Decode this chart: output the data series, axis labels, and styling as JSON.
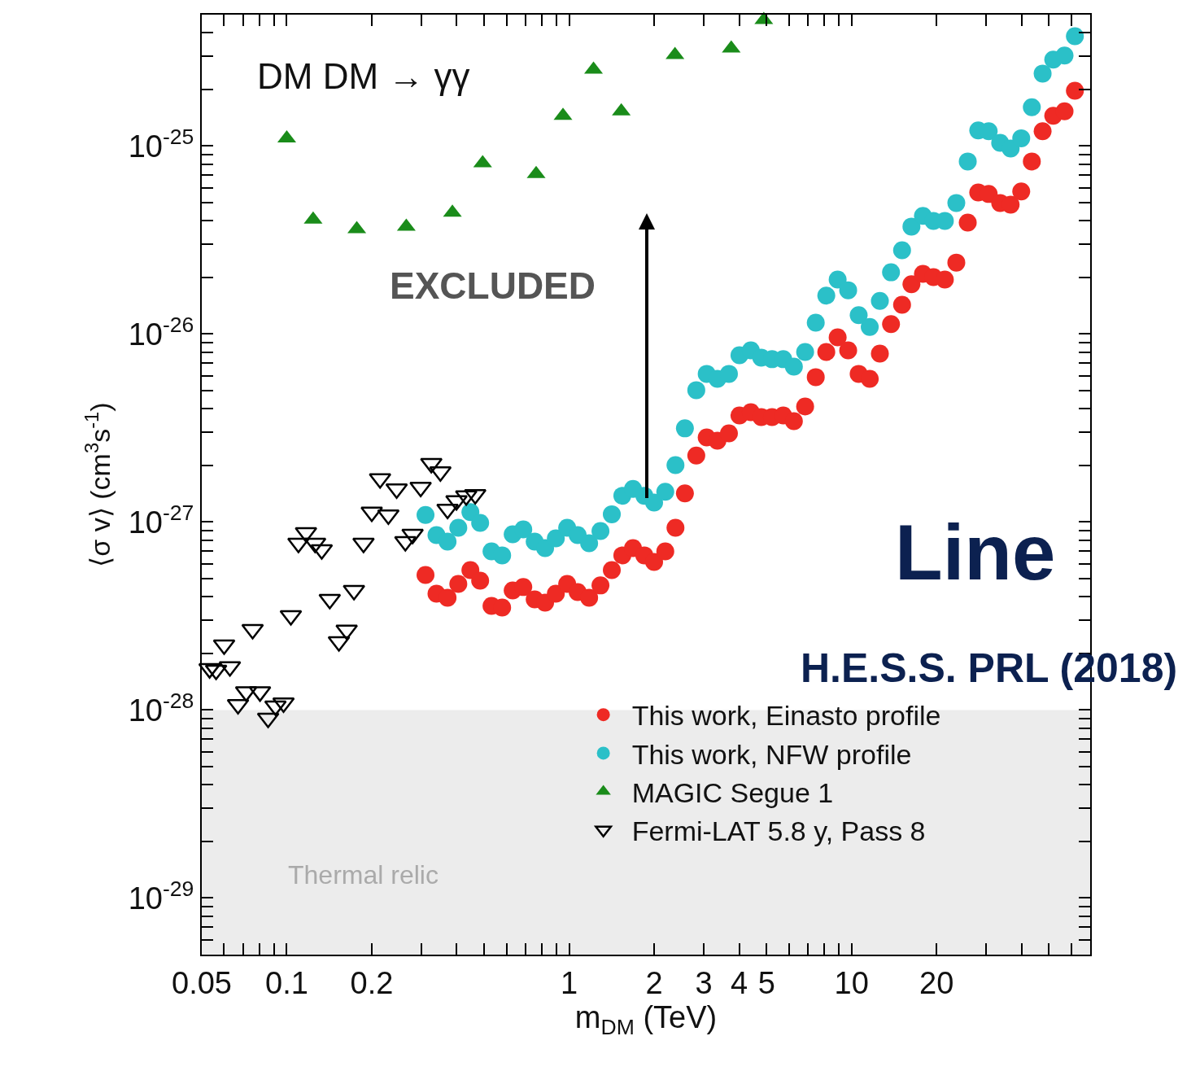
{
  "chart_data": {
    "type": "scatter",
    "xlabel": "m$_{DM}$ (TeV)",
    "ylabel": "⟨σ v⟩ (cm$^{3}$s$^{-1}$)",
    "log": "xy",
    "grid": false,
    "legend": "bottom right",
    "xlim": [
      0.05,
      70
    ],
    "ylim": [
      5e-30,
      5e-25
    ],
    "xticks": [
      0.05,
      {
        "value": 0.06,
        "label": null
      },
      {
        "value": 0.07,
        "label": null
      },
      {
        "value": 0.08,
        "label": null
      },
      {
        "value": 0.09,
        "label": null
      },
      0.1,
      0.2,
      {
        "value": 0.3,
        "label": null
      },
      {
        "value": 0.4,
        "label": null
      },
      {
        "value": 0.5,
        "label": null
      },
      {
        "value": 0.6,
        "label": null
      },
      {
        "value": 0.7,
        "label": null
      },
      {
        "value": 0.8,
        "label": null
      },
      {
        "value": 0.9,
        "label": null
      },
      1,
      2,
      3,
      4,
      5,
      {
        "value": 6,
        "label": null
      },
      {
        "value": 7,
        "label": null
      },
      {
        "value": 8,
        "label": null
      },
      {
        "value": 9,
        "label": null
      },
      10,
      20,
      {
        "value": 30,
        "label": null
      },
      {
        "value": 40,
        "label": null
      },
      {
        "value": 50,
        "label": null
      },
      {
        "value": 60,
        "label": null
      },
      {
        "value": 70,
        "label": null
      }
    ],
    "yticks": [
      {
        "value": 5e-30,
        "label": null
      },
      {
        "value": 6e-30,
        "label": null
      },
      {
        "value": 7e-30,
        "label": null
      },
      {
        "value": 8e-30,
        "label": null
      },
      {
        "value": 9e-30,
        "label": null
      },
      {
        "value": 1e-29,
        "label": "10$^{-29}$"
      },
      {
        "value": 2e-29,
        "label": null
      },
      {
        "value": 3e-29,
        "label": null
      },
      {
        "value": 4e-29,
        "label": null
      },
      {
        "value": 5e-29,
        "label": null
      },
      {
        "value": 6e-29,
        "label": null
      },
      {
        "value": 7e-29,
        "label": null
      },
      {
        "value": 8e-29,
        "label": null
      },
      {
        "value": 9e-29,
        "label": null
      },
      {
        "value": 1e-28,
        "label": "10$^{-28}$"
      },
      {
        "value": 2e-28,
        "label": null
      },
      {
        "value": 3e-28,
        "label": null
      },
      {
        "value": 4e-28,
        "label": null
      },
      {
        "value": 5e-28,
        "label": null
      },
      {
        "value": 6e-28,
        "label": null
      },
      {
        "value": 7e-28,
        "label": null
      },
      {
        "value": 8e-28,
        "label": null
      },
      {
        "value": 9e-28,
        "label": null
      },
      {
        "value": 1e-27,
        "label": "10$^{-27}$"
      },
      {
        "value": 2e-27,
        "label": null
      },
      {
        "value": 3e-27,
        "label": null
      },
      {
        "value": 4e-27,
        "label": null
      },
      {
        "value": 5e-27,
        "label": null
      },
      {
        "value": 6e-27,
        "label": null
      },
      {
        "value": 7e-27,
        "label": null
      },
      {
        "value": 8e-27,
        "label": null
      },
      {
        "value": 9e-27,
        "label": null
      },
      {
        "value": 1e-26,
        "label": "10$^{-26}$"
      },
      {
        "value": 2e-26,
        "label": null
      },
      {
        "value": 3e-26,
        "label": null
      },
      {
        "value": 4e-26,
        "label": null
      },
      {
        "value": 5e-26,
        "label": null
      },
      {
        "value": 6e-26,
        "label": null
      },
      {
        "value": 7e-26,
        "label": null
      },
      {
        "value": 8e-26,
        "label": null
      },
      {
        "value": 9e-26,
        "label": null
      },
      {
        "value": 1e-25,
        "label": "10$^{-25}$"
      },
      {
        "value": 2e-25,
        "label": null
      },
      {
        "value": 3e-25,
        "label": null
      },
      {
        "value": 4e-25,
        "label": null
      },
      {
        "value": 5e-25,
        "label": null
      }
    ],
    "bands": [
      {
        "axis": "y",
        "from": 5e-30,
        "to": 1e-28,
        "label": "Thermal relic",
        "color": "#ececec"
      }
    ],
    "annotations": [
      "DM DM → γγ",
      "EXCLUDED",
      "Line",
      "H.E.S.S. PRL (2018)"
    ],
    "series": [
      {
        "name": "This work, Einasto profile",
        "color": "#ee2a24",
        "marker": "circle",
        "x": [
          0.31,
          0.339,
          0.371,
          0.405,
          0.447,
          0.484,
          0.531,
          0.579,
          0.631,
          0.688,
          0.755,
          0.822,
          0.897,
          0.984,
          1.072,
          1.177,
          1.291,
          1.416,
          1.543,
          1.683,
          1.846,
          1.999,
          2.19,
          2.38,
          2.57,
          2.82,
          3.07,
          3.35,
          3.68,
          4.01,
          4.4,
          4.79,
          5.23,
          5.73,
          6.25,
          6.85,
          7.47,
          8.14,
          8.93,
          9.73,
          10.6,
          11.6,
          12.6,
          13.8,
          15.1,
          16.3,
          17.9,
          19.5,
          21.4,
          23.5,
          25.8,
          28.1,
          30.6,
          33.6,
          36.6,
          39.9,
          43.5,
          47.5,
          51.8,
          56.8,
          61.8
        ],
        "values": [
          5.23e-28,
          4.16e-28,
          3.96e-28,
          4.69e-28,
          5.55e-28,
          4.88e-28,
          3.58e-28,
          3.51e-28,
          4.33e-28,
          4.51e-28,
          3.88e-28,
          3.73e-28,
          4.16e-28,
          4.69e-28,
          4.24e-28,
          3.96e-28,
          4.6e-28,
          5.55e-28,
          6.65e-28,
          7.27e-28,
          6.65e-28,
          6.14e-28,
          6.98e-28,
          9.33e-28,
          1.42e-27,
          2.26e-27,
          2.82e-27,
          2.71e-27,
          2.96e-27,
          3.69e-27,
          3.84e-27,
          3.62e-27,
          3.62e-27,
          3.69e-27,
          3.44e-27,
          4.12e-27,
          5.9e-27,
          8.03e-27,
          9.61e-27,
          8.19e-27,
          6.14e-27,
          5.78e-27,
          7.87e-27,
          1.13e-26,
          1.43e-26,
          1.84e-26,
          2.09e-26,
          2.01e-26,
          1.95e-26,
          2.4e-26,
          3.92e-26,
          5.66e-26,
          5.56e-26,
          4.98e-26,
          4.88e-26,
          5.73e-26,
          8.28e-26,
          1.2e-25,
          1.45e-25,
          1.53e-25,
          1.97e-25
        ]
      },
      {
        "name": "This work, NFW profile",
        "color": "#2bc0c8",
        "marker": "circle",
        "x": [
          0.31,
          0.339,
          0.371,
          0.405,
          0.447,
          0.484,
          0.531,
          0.579,
          0.631,
          0.688,
          0.755,
          0.822,
          0.897,
          0.984,
          1.072,
          1.177,
          1.291,
          1.416,
          1.543,
          1.683,
          1.846,
          1.999,
          2.19,
          2.38,
          2.57,
          2.82,
          3.07,
          3.35,
          3.68,
          4.01,
          4.4,
          4.79,
          5.23,
          5.73,
          6.25,
          6.85,
          7.47,
          8.14,
          8.93,
          9.73,
          10.6,
          11.6,
          12.6,
          13.8,
          15.1,
          16.3,
          17.9,
          19.5,
          21.4,
          23.5,
          25.8,
          28.1,
          30.6,
          33.6,
          36.6,
          39.9,
          43.5,
          47.5,
          51.8,
          56.8,
          61.8
        ],
        "values": [
          1.09e-27,
          8.53e-28,
          7.87e-28,
          9.33e-28,
          1.13e-27,
          9.9e-28,
          6.98e-28,
          6.65e-28,
          8.61e-28,
          9.14e-28,
          7.87e-28,
          7.27e-28,
          8.19e-28,
          9.33e-28,
          8.53e-28,
          7.71e-28,
          8.96e-28,
          1.1e-27,
          1.38e-27,
          1.5e-27,
          1.38e-27,
          1.27e-27,
          1.45e-27,
          2.01e-27,
          3.15e-27,
          5.03e-27,
          6.14e-27,
          5.78e-27,
          6.14e-27,
          7.71e-27,
          8.19e-27,
          7.49e-27,
          7.35e-27,
          7.35e-27,
          6.71e-27,
          8.03e-27,
          1.15e-26,
          1.6e-26,
          1.95e-26,
          1.71e-26,
          1.26e-26,
          1.09e-26,
          1.5e-26,
          2.13e-26,
          2.79e-26,
          3.73e-26,
          4.25e-26,
          4e-26,
          4e-26,
          4.98e-26,
          8.28e-26,
          1.21e-25,
          1.2e-25,
          1.04e-25,
          9.71e-26,
          1.1e-25,
          1.61e-25,
          2.43e-25,
          2.88e-25,
          3.03e-25,
          3.84e-25
        ]
      },
      {
        "name": "MAGIC Segue 1",
        "color": "#1a8c1a",
        "marker": "triangle",
        "x": [
          0.1,
          0.124,
          0.177,
          0.265,
          0.386,
          0.494,
          0.764,
          0.951,
          1.22,
          1.53,
          2.37,
          3.75,
          4.89
        ],
        "values": [
          1.1e-25,
          4.07e-26,
          3.62e-26,
          3.73e-26,
          4.42e-26,
          8.1e-26,
          7.1e-26,
          1.45e-25,
          2.55e-25,
          1.53e-25,
          3.05e-25,
          3.31e-25,
          4.69e-25
        ]
      },
      {
        "name": "Fermi-LAT 5.8 y, Pass 8",
        "color": "#000000",
        "marker": "triangle-down-open",
        "x": [
          0.0533,
          0.0562,
          0.06,
          0.0629,
          0.0672,
          0.0718,
          0.0757,
          0.0804,
          0.0859,
          0.0912,
          0.0974,
          0.1034,
          0.11,
          0.117,
          0.126,
          0.133,
          0.142,
          0.153,
          0.163,
          0.173,
          0.187,
          0.2,
          0.214,
          0.229,
          0.245,
          0.263,
          0.279,
          0.298,
          0.325,
          0.35,
          0.371,
          0.399,
          0.432,
          0.465
        ],
        "values": [
          1.66e-28,
          1.63e-28,
          2.22e-28,
          1.7e-28,
          1.07e-28,
          1.25e-28,
          2.68e-28,
          1.25e-28,
          9.05e-29,
          1.05e-28,
          1.09e-28,
          3.18e-28,
          7.71e-28,
          8.79e-28,
          7.71e-28,
          7.13e-28,
          3.88e-28,
          2.31e-28,
          2.66e-28,
          4.33e-28,
          7.71e-28,
          1.13e-27,
          1.7e-27,
          1.09e-27,
          1.5e-27,
          7.87e-28,
          8.61e-28,
          1.53e-27,
          2.05e-27,
          1.85e-27,
          1.17e-27,
          1.3e-27,
          1.38e-27,
          1.4e-27
        ]
      }
    ]
  }
}
